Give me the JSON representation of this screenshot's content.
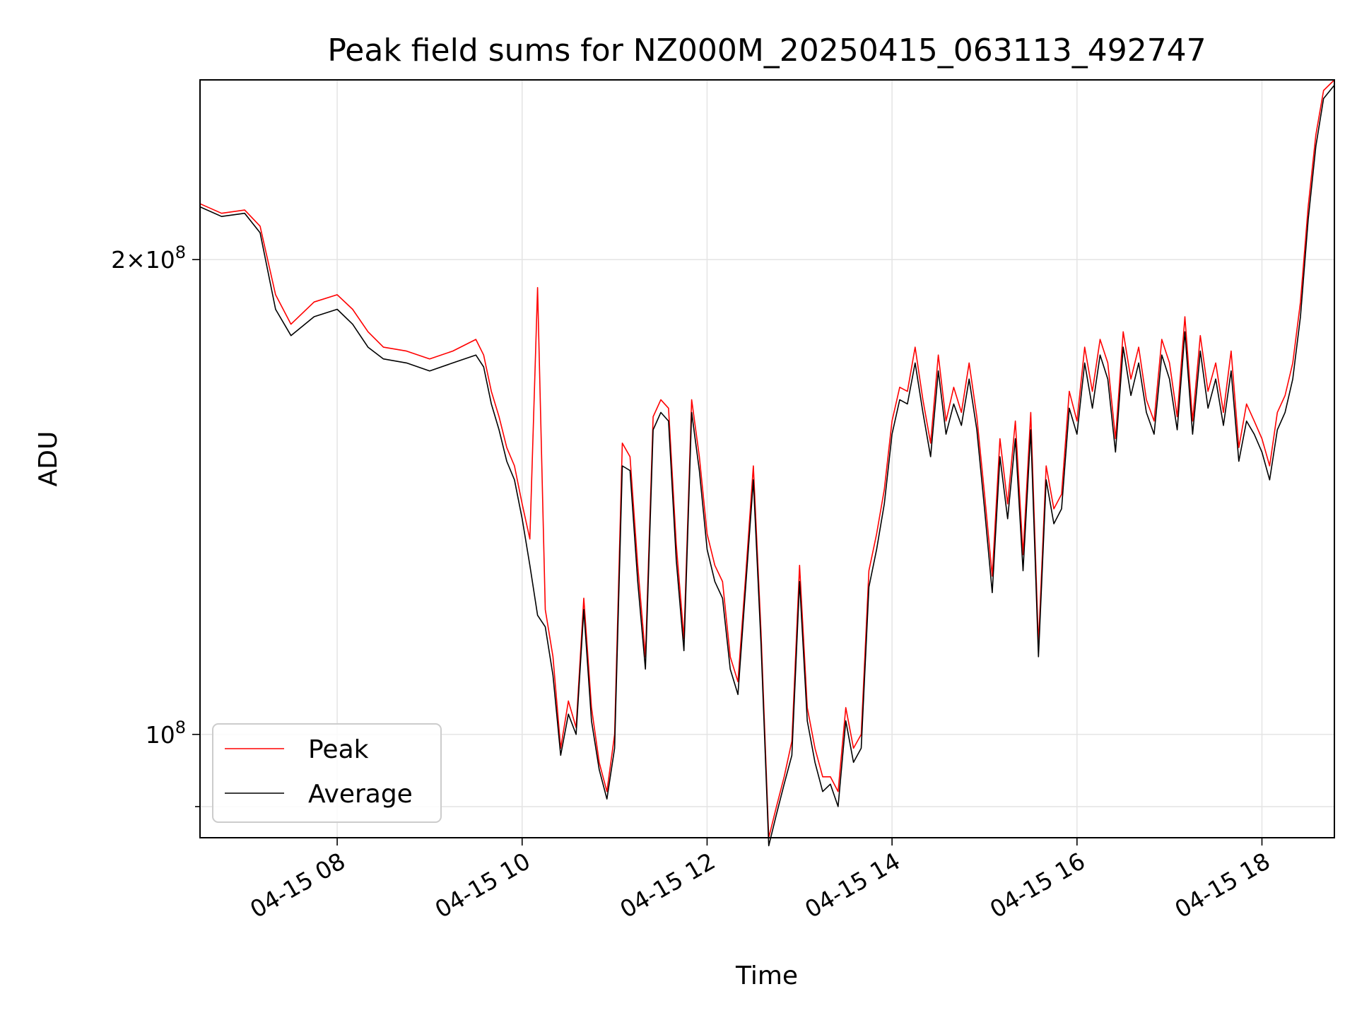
{
  "chart_data": {
    "type": "line",
    "title": "Peak field sums for NZ000M_20250415_063113_492747",
    "xlabel": "Time",
    "ylabel": "ADU",
    "yscale": "log",
    "xlim": [
      "2025-04-15 06:31",
      "2025-04-15 18:47"
    ],
    "ylim": [
      86000000,
      260000000
    ],
    "grid": true,
    "legend_position": "lower-left",
    "x_ticks": [
      {
        "value": "2025-04-15 08:00",
        "label": "04-15 08"
      },
      {
        "value": "2025-04-15 10:00",
        "label": "04-15 10"
      },
      {
        "value": "2025-04-15 12:00",
        "label": "04-15 12"
      },
      {
        "value": "2025-04-15 14:00",
        "label": "04-15 14"
      },
      {
        "value": "2025-04-15 16:00",
        "label": "04-15 16"
      },
      {
        "value": "2025-04-15 18:00",
        "label": "04-15 18"
      }
    ],
    "y_ticks": [
      {
        "value": 200000000,
        "mantissa": "2",
        "exponent": "8"
      },
      {
        "value": 100000000,
        "mantissa": "",
        "exponent": "8"
      }
    ],
    "y_minor_ticks": [
      90000000
    ],
    "x": [
      "2025-04-15 06:31",
      "2025-04-15 06:45",
      "2025-04-15 07:00",
      "2025-04-15 07:10",
      "2025-04-15 07:20",
      "2025-04-15 07:30",
      "2025-04-15 07:45",
      "2025-04-15 08:00",
      "2025-04-15 08:10",
      "2025-04-15 08:20",
      "2025-04-15 08:30",
      "2025-04-15 08:45",
      "2025-04-15 09:00",
      "2025-04-15 09:15",
      "2025-04-15 09:30",
      "2025-04-15 09:35",
      "2025-04-15 09:40",
      "2025-04-15 09:45",
      "2025-04-15 09:50",
      "2025-04-15 09:55",
      "2025-04-15 10:00",
      "2025-04-15 10:05",
      "2025-04-15 10:10",
      "2025-04-15 10:15",
      "2025-04-15 10:20",
      "2025-04-15 10:25",
      "2025-04-15 10:30",
      "2025-04-15 10:35",
      "2025-04-15 10:40",
      "2025-04-15 10:45",
      "2025-04-15 10:50",
      "2025-04-15 10:55",
      "2025-04-15 11:00",
      "2025-04-15 11:05",
      "2025-04-15 11:10",
      "2025-04-15 11:15",
      "2025-04-15 11:20",
      "2025-04-15 11:25",
      "2025-04-15 11:30",
      "2025-04-15 11:35",
      "2025-04-15 11:40",
      "2025-04-15 11:45",
      "2025-04-15 11:50",
      "2025-04-15 11:55",
      "2025-04-15 12:00",
      "2025-04-15 12:05",
      "2025-04-15 12:10",
      "2025-04-15 12:15",
      "2025-04-15 12:20",
      "2025-04-15 12:25",
      "2025-04-15 12:30",
      "2025-04-15 12:35",
      "2025-04-15 12:40",
      "2025-04-15 12:45",
      "2025-04-15 12:50",
      "2025-04-15 12:55",
      "2025-04-15 13:00",
      "2025-04-15 13:05",
      "2025-04-15 13:10",
      "2025-04-15 13:15",
      "2025-04-15 13:20",
      "2025-04-15 13:25",
      "2025-04-15 13:30",
      "2025-04-15 13:35",
      "2025-04-15 13:40",
      "2025-04-15 13:45",
      "2025-04-15 13:50",
      "2025-04-15 13:55",
      "2025-04-15 14:00",
      "2025-04-15 14:05",
      "2025-04-15 14:10",
      "2025-04-15 14:15",
      "2025-04-15 14:20",
      "2025-04-15 14:25",
      "2025-04-15 14:30",
      "2025-04-15 14:35",
      "2025-04-15 14:40",
      "2025-04-15 14:45",
      "2025-04-15 14:50",
      "2025-04-15 14:55",
      "2025-04-15 15:00",
      "2025-04-15 15:05",
      "2025-04-15 15:10",
      "2025-04-15 15:15",
      "2025-04-15 15:20",
      "2025-04-15 15:25",
      "2025-04-15 15:30",
      "2025-04-15 15:35",
      "2025-04-15 15:40",
      "2025-04-15 15:45",
      "2025-04-15 15:50",
      "2025-04-15 15:55",
      "2025-04-15 16:00",
      "2025-04-15 16:05",
      "2025-04-15 16:10",
      "2025-04-15 16:15",
      "2025-04-15 16:20",
      "2025-04-15 16:25",
      "2025-04-15 16:30",
      "2025-04-15 16:35",
      "2025-04-15 16:40",
      "2025-04-15 16:45",
      "2025-04-15 16:50",
      "2025-04-15 16:55",
      "2025-04-15 17:00",
      "2025-04-15 17:05",
      "2025-04-15 17:10",
      "2025-04-15 17:15",
      "2025-04-15 17:20",
      "2025-04-15 17:25",
      "2025-04-15 17:30",
      "2025-04-15 17:35",
      "2025-04-15 17:40",
      "2025-04-15 17:45",
      "2025-04-15 17:50",
      "2025-04-15 17:55",
      "2025-04-15 18:00",
      "2025-04-15 18:05",
      "2025-04-15 18:10",
      "2025-04-15 18:15",
      "2025-04-15 18:20",
      "2025-04-15 18:25",
      "2025-04-15 18:30",
      "2025-04-15 18:35",
      "2025-04-15 18:40",
      "2025-04-15 18:47"
    ],
    "series": [
      {
        "name": "Peak",
        "color": "#ff0000",
        "values": [
          217000000,
          214000000,
          215000000,
          210000000,
          190000000,
          182000000,
          188000000,
          190000000,
          186000000,
          180000000,
          176000000,
          175000000,
          173000000,
          175000000,
          178000000,
          174000000,
          165000000,
          159000000,
          152000000,
          148000000,
          140000000,
          133000000,
          192000000,
          120000000,
          112000000,
          98000000,
          105000000,
          101000000,
          122000000,
          104000000,
          96000000,
          92000000,
          100000000,
          153000000,
          150000000,
          128000000,
          112000000,
          159000000,
          163000000,
          161000000,
          132000000,
          115000000,
          163000000,
          150000000,
          134000000,
          128000000,
          125000000,
          112000000,
          108000000,
          126000000,
          148000000,
          116000000,
          86000000,
          90000000,
          94000000,
          99000000,
          128000000,
          104000000,
          98000000,
          94000000,
          94000000,
          92000000,
          104000000,
          98000000,
          100000000,
          127000000,
          134000000,
          143000000,
          158000000,
          166000000,
          165000000,
          176000000,
          163000000,
          153000000,
          174000000,
          158000000,
          166000000,
          160000000,
          172000000,
          159000000,
          142000000,
          126000000,
          154000000,
          140000000,
          158000000,
          130000000,
          160000000,
          114000000,
          148000000,
          139000000,
          142000000,
          165000000,
          158000000,
          176000000,
          165000000,
          178000000,
          172000000,
          154000000,
          180000000,
          168000000,
          176000000,
          163000000,
          158000000,
          178000000,
          172000000,
          159000000,
          184000000,
          158000000,
          179000000,
          165000000,
          172000000,
          160000000,
          175000000,
          152000000,
          162000000,
          158000000,
          154000000,
          148000000,
          160000000,
          164000000,
          172000000,
          188000000,
          216000000,
          240000000,
          256000000,
          260000000
        ]
      },
      {
        "name": "Average",
        "color": "#000000",
        "values": [
          216000000,
          213000000,
          214000000,
          208000000,
          186000000,
          179000000,
          184000000,
          186000000,
          182000000,
          176000000,
          173000000,
          172000000,
          170000000,
          172000000,
          174000000,
          171000000,
          162000000,
          156000000,
          149000000,
          145000000,
          137000000,
          128000000,
          119000000,
          117000000,
          109000000,
          97000000,
          103000000,
          100000000,
          120000000,
          102000000,
          95000000,
          91000000,
          98000000,
          148000000,
          147000000,
          125000000,
          110000000,
          156000000,
          160000000,
          158000000,
          129000000,
          113000000,
          160000000,
          147000000,
          131000000,
          125000000,
          122000000,
          110000000,
          106000000,
          124000000,
          145000000,
          114000000,
          85000000,
          89000000,
          93000000,
          97000000,
          125000000,
          102000000,
          96000000,
          92000000,
          93000000,
          90000000,
          102000000,
          96000000,
          98000000,
          124000000,
          131000000,
          140000000,
          155000000,
          163000000,
          162000000,
          172000000,
          160000000,
          150000000,
          170000000,
          155000000,
          162000000,
          157000000,
          168000000,
          156000000,
          139000000,
          123000000,
          150000000,
          137000000,
          154000000,
          127000000,
          156000000,
          112000000,
          145000000,
          136000000,
          139000000,
          161000000,
          155000000,
          172000000,
          161000000,
          174000000,
          168000000,
          151000000,
          176000000,
          164000000,
          172000000,
          160000000,
          155000000,
          174000000,
          168000000,
          156000000,
          180000000,
          155000000,
          175000000,
          161000000,
          168000000,
          157000000,
          170000000,
          149000000,
          158000000,
          155000000,
          151000000,
          145000000,
          156000000,
          160000000,
          168000000,
          184000000,
          212000000,
          236000000,
          253000000,
          258000000
        ]
      }
    ]
  }
}
